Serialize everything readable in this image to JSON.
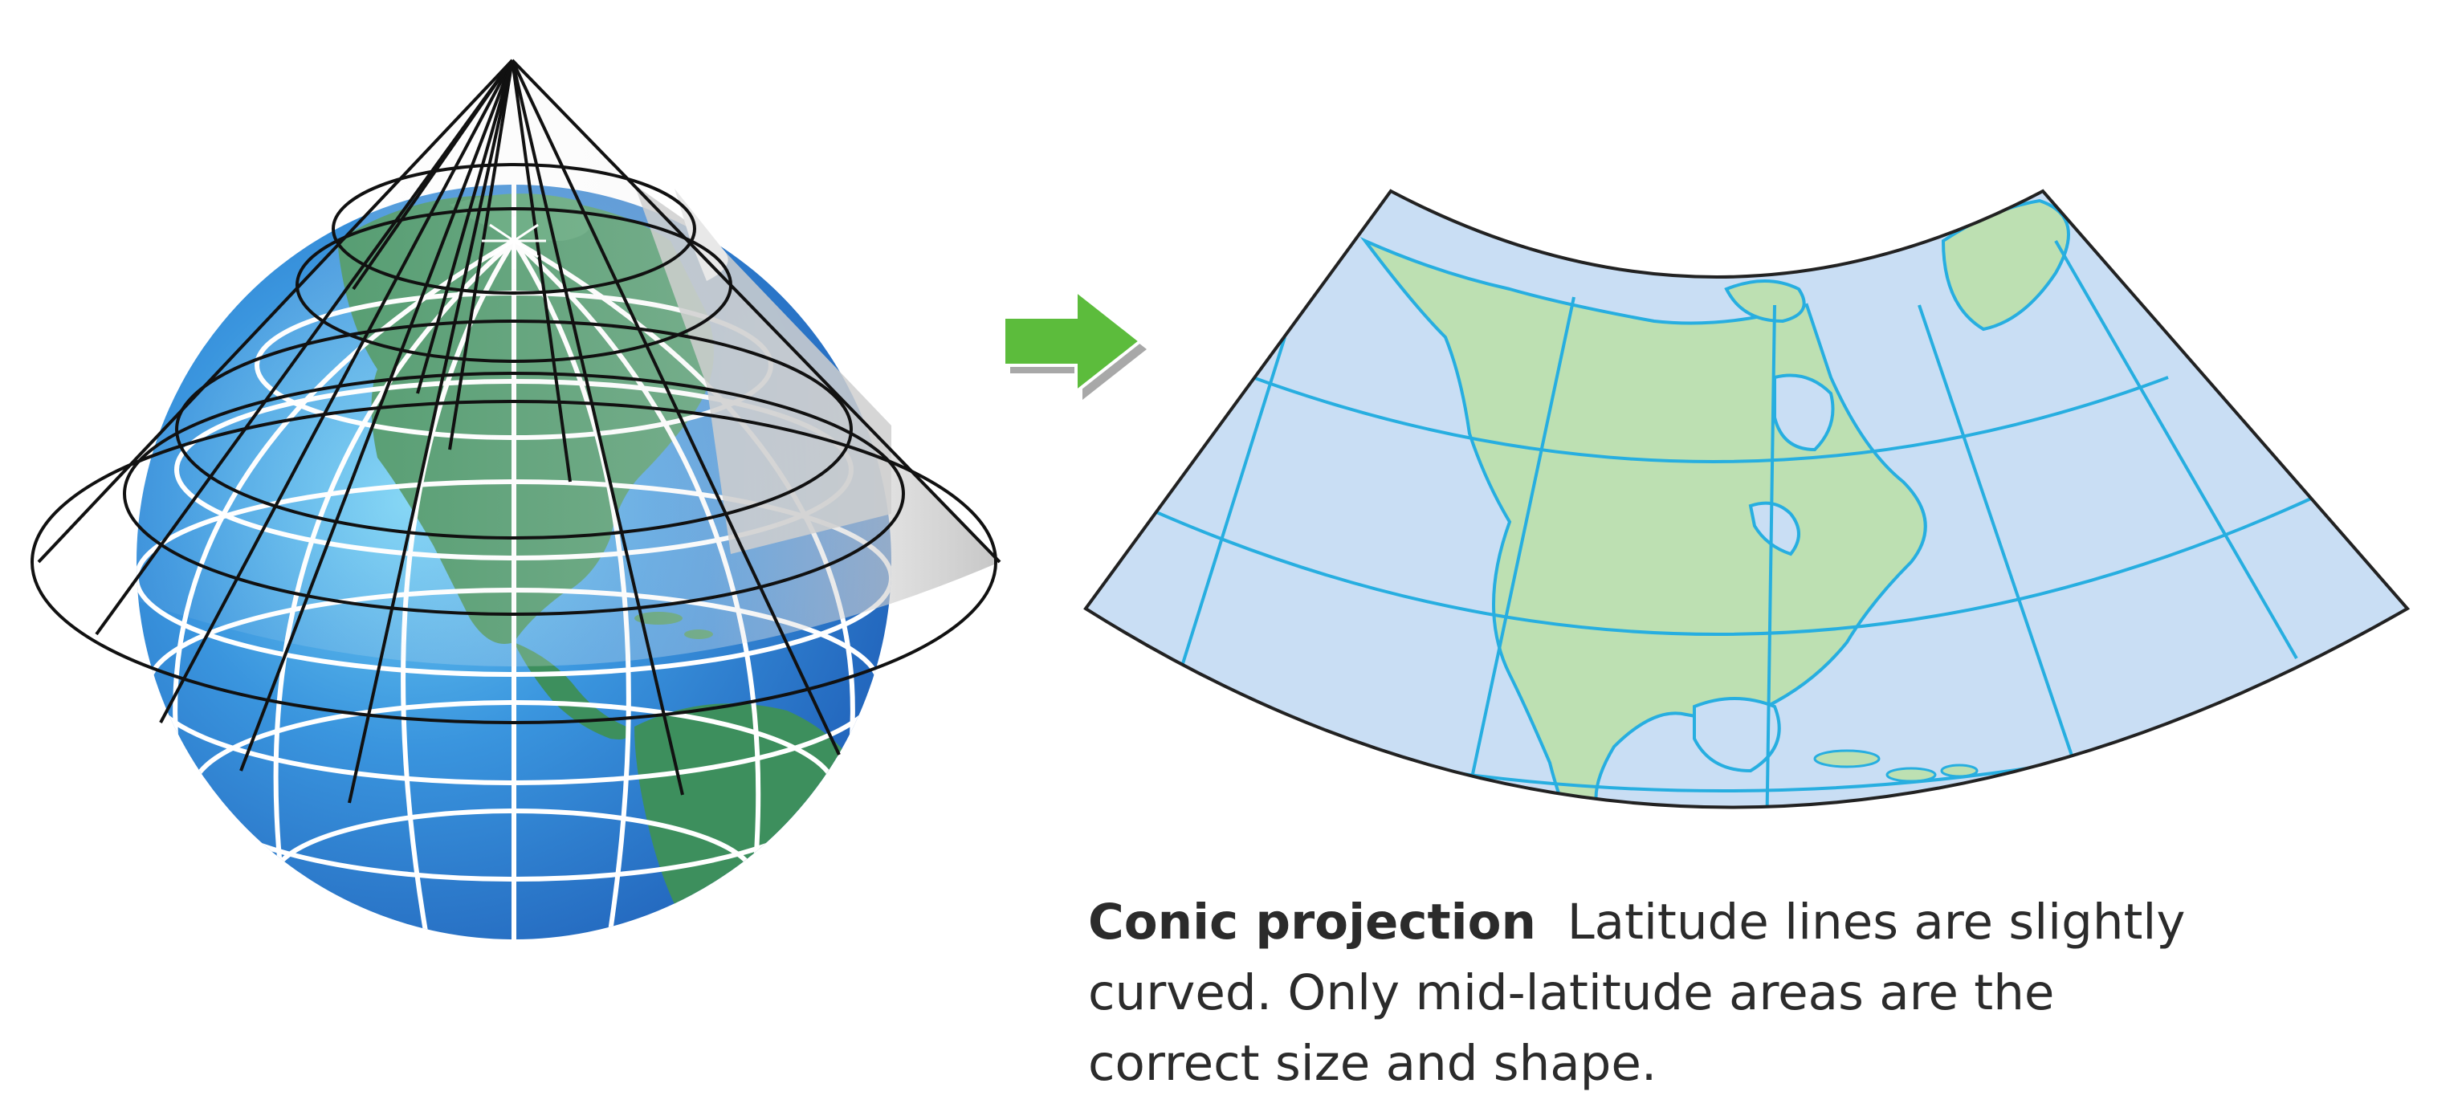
{
  "diagram": {
    "arrow_icon": "right-arrow-icon",
    "globe_icon": "globe-with-cone-icon",
    "map_icon": "conic-projection-map-icon",
    "colors": {
      "ocean_globe": "#2f7fd6",
      "ocean_globe_light": "#5fc2f0",
      "land_globe": "#3c8f5a",
      "cone_fill": "#d6d6d6",
      "map_ocean": "#c9def4",
      "map_land": "#bde0b2",
      "map_grid": "#27aee0",
      "arrow": "#5cbc3c"
    }
  },
  "caption": {
    "title": "Conic projection",
    "line1": "Latitude lines are slightly",
    "line2": "curved. Only mid-latitude areas are the",
    "line3": "correct size and shape."
  }
}
